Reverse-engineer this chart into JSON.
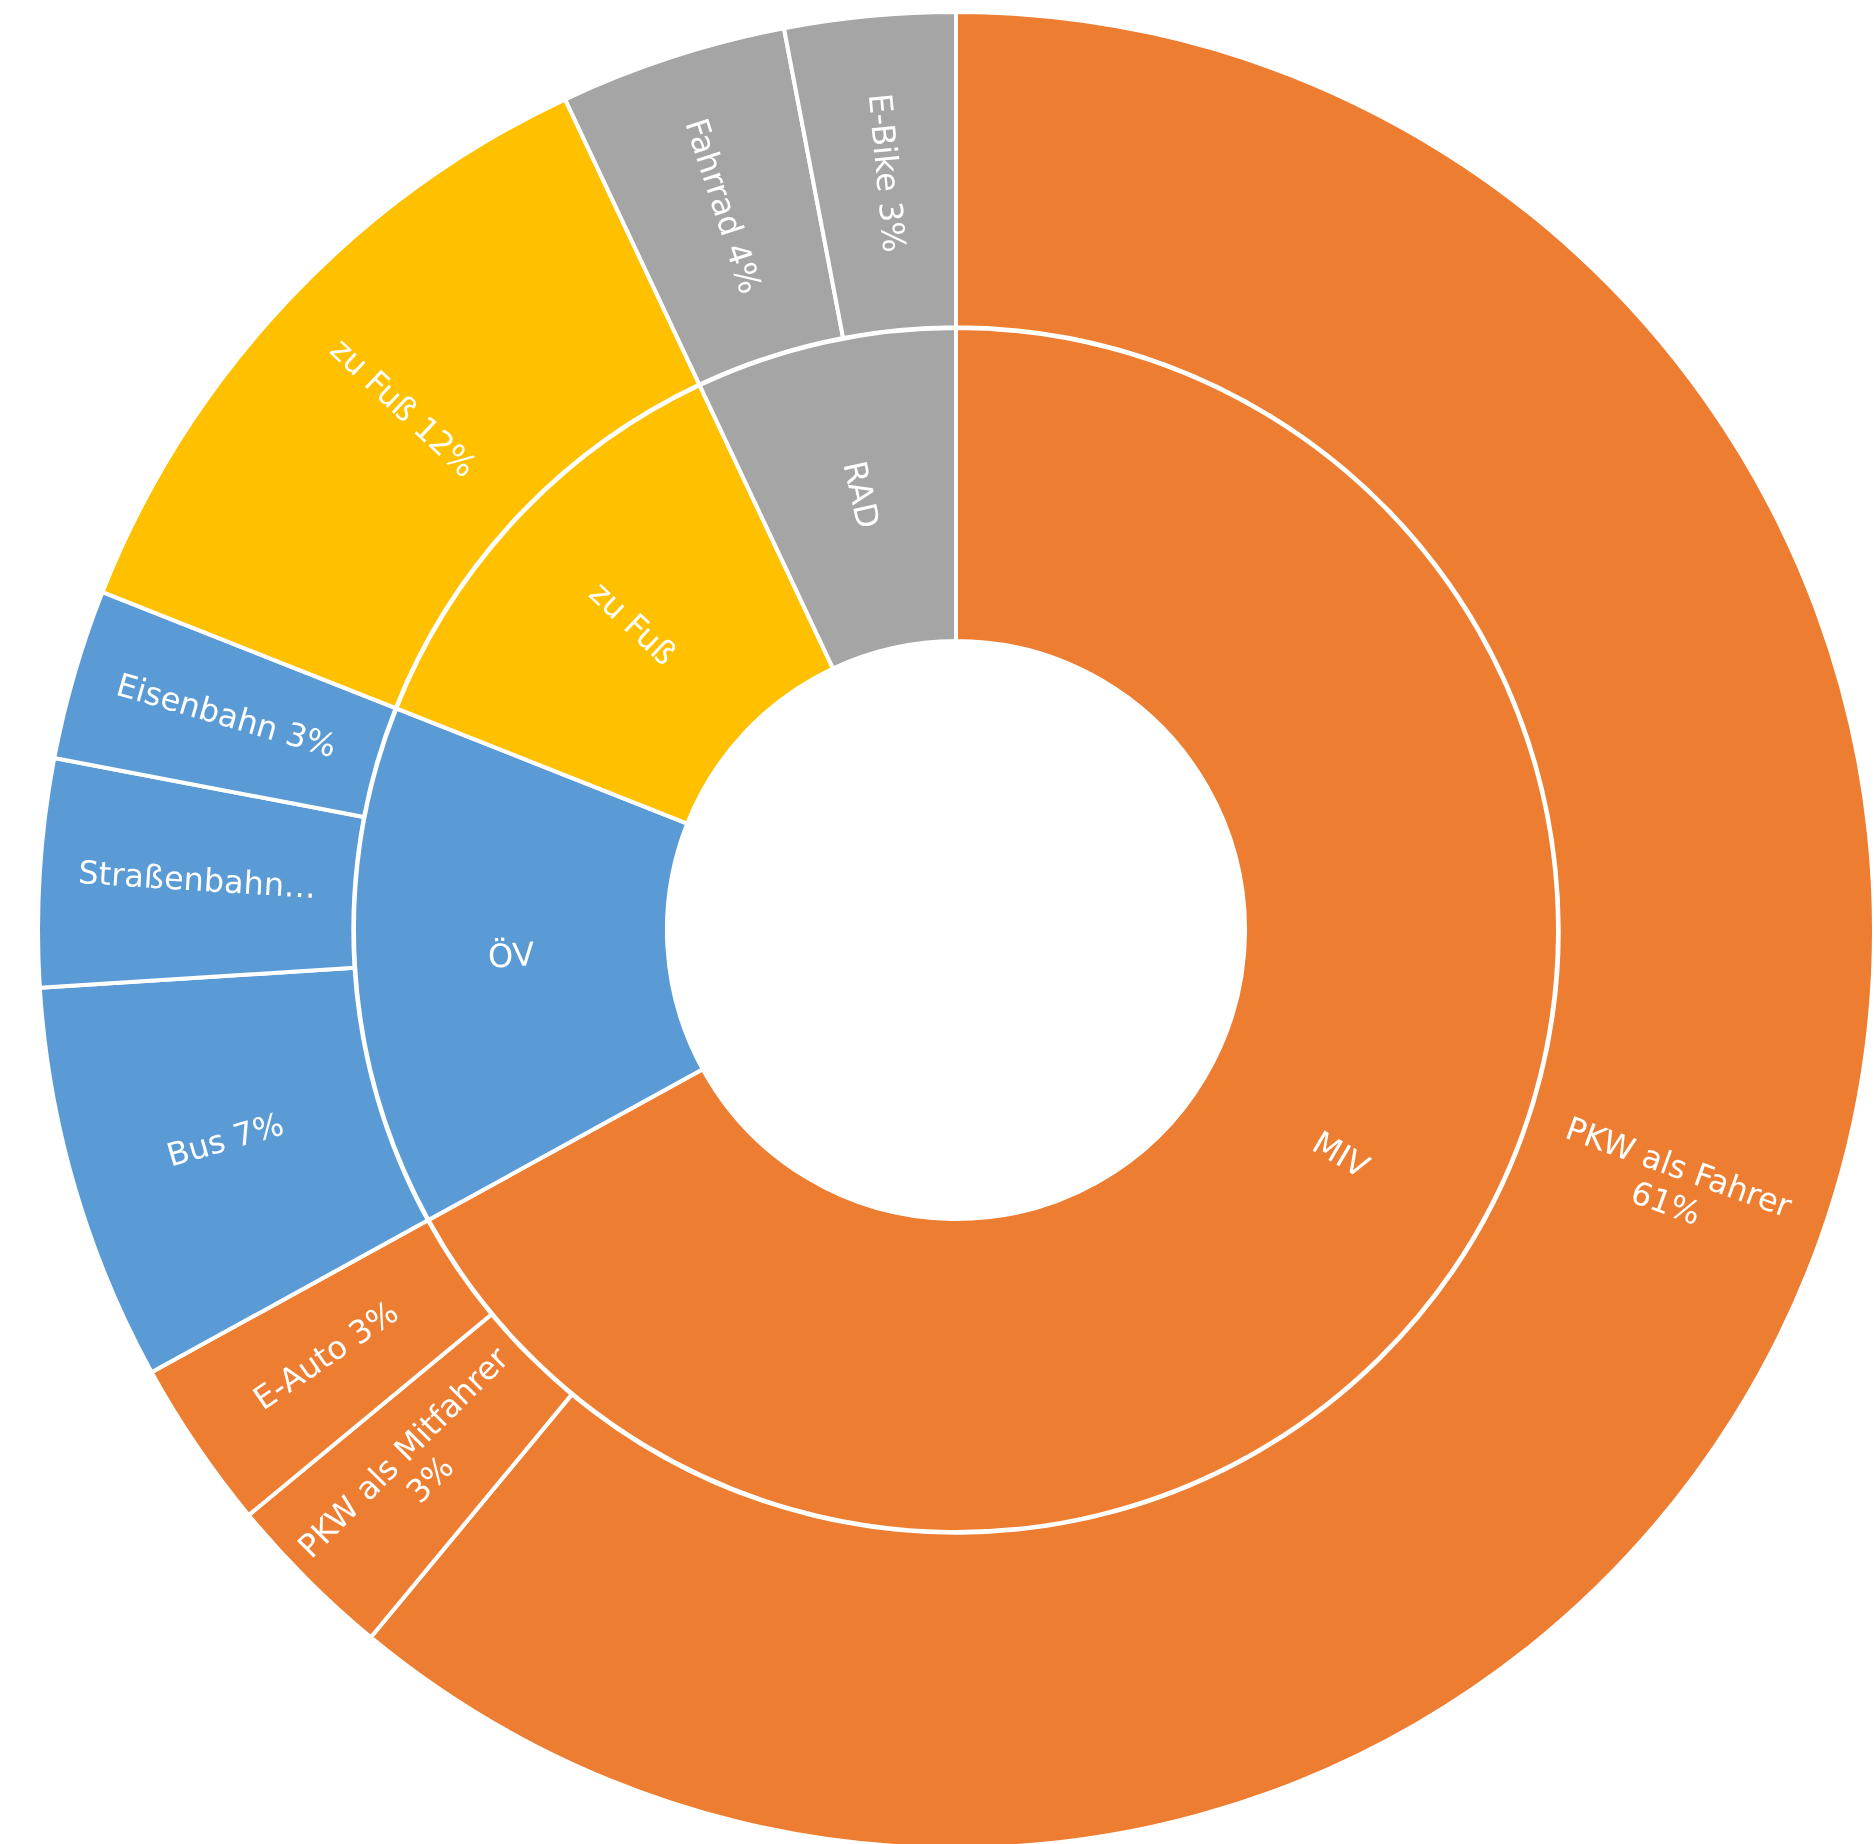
{
  "chart_data": [
    {
      "type": "donut",
      "legend": false,
      "categories": [
        "MIV",
        "ÖV",
        "zu Fuß",
        "RAD"
      ],
      "values": [
        67,
        14,
        12,
        7
      ],
      "colors": [
        "#ed7d31",
        "#5b9bd5",
        "#ffc000",
        "#a5a5a5"
      ]
    },
    {
      "type": "donut",
      "legend": false,
      "categories": [
        "PKW als Fahrer",
        "PKW als Mitfahrer",
        "E-Auto",
        "Bus",
        "Straßenbahn…",
        "Eisenbahn",
        "zu Fuß",
        "Fahrrad",
        "E-Bike"
      ],
      "values": [
        61,
        3,
        3,
        7,
        4,
        3,
        12,
        4,
        3
      ],
      "value_labels": [
        "61%",
        "3%",
        "3%",
        "7%",
        null,
        "3%",
        "12%",
        "4%",
        "3%"
      ],
      "colors": [
        "#ed7d31",
        "#ed7d31",
        "#ed7d31",
        "#5b9bd5",
        "#5b9bd5",
        "#5b9bd5",
        "#ffc000",
        "#a5a5a5",
        "#a5a5a5"
      ]
    }
  ]
}
